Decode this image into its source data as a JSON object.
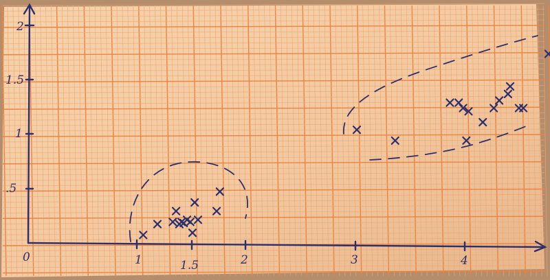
{
  "colors": {
    "paper": "#f2c9a2",
    "grid_minor": "#f0a66d",
    "grid_major": "#ea8440",
    "ink": "#2d2f6b",
    "background": "#b48d6c"
  },
  "axis_labels": {
    "x_ticks": [
      "0",
      "1",
      "1.5",
      "2",
      "3",
      "4"
    ],
    "y_ticks": [
      "2",
      "1.5",
      "1",
      ".5"
    ]
  },
  "chart_data": {
    "type": "scatter",
    "series": [
      {
        "x": [
          1.05,
          1.18,
          1.32,
          1.35,
          1.38,
          1.4,
          1.42,
          1.45,
          1.48,
          1.5,
          1.52,
          1.55,
          1.72,
          1.75
        ],
        "y": [
          0.08,
          0.18,
          0.2,
          0.3,
          0.18,
          0.2,
          0.19,
          0.22,
          0.2,
          0.1,
          0.38,
          0.22,
          0.3,
          0.48
        ]
      },
      {
        "x": [
          3.0,
          3.35,
          3.85,
          3.93,
          3.97,
          4.0,
          4.02,
          4.15,
          4.25,
          4.3,
          4.38,
          4.4,
          4.48,
          4.52,
          4.75
        ],
        "y": [
          1.05,
          0.95,
          1.3,
          1.3,
          1.25,
          0.95,
          1.22,
          1.12,
          1.25,
          1.32,
          1.38,
          1.45,
          1.25,
          1.25,
          1.75
        ]
      }
    ],
    "xlim": [
      0,
      4.8
    ],
    "ylim": [
      0,
      2.1
    ]
  }
}
